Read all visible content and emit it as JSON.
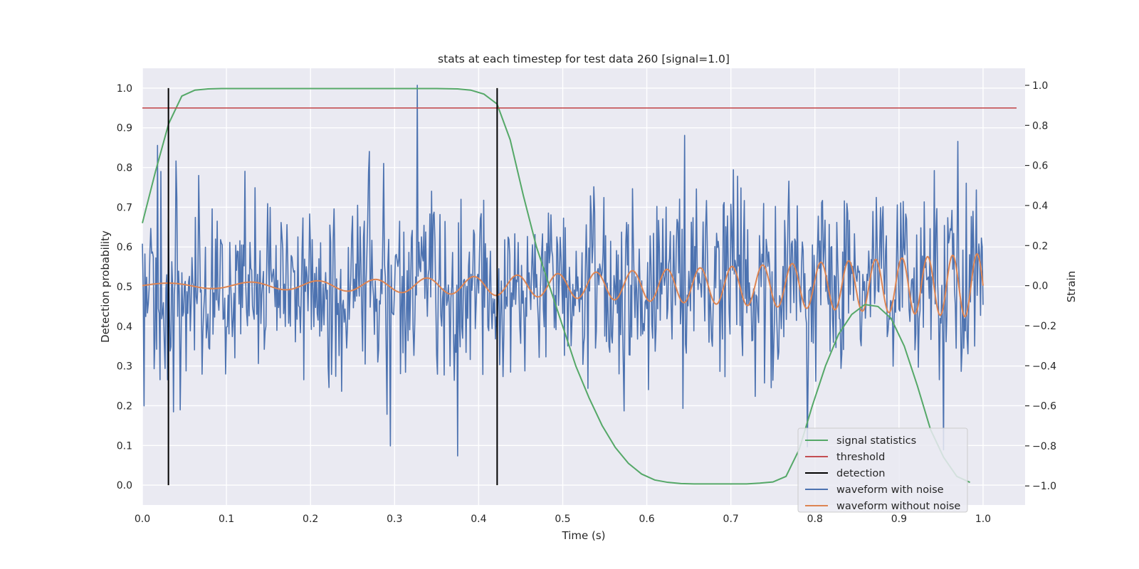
{
  "chart_data": {
    "type": "line",
    "title": "stats at each timestep for test data 260 [signal=1.0]",
    "xlabel": "Time (s)",
    "ylabel": "Detection probability",
    "y2label": "Strain",
    "xlim": [
      0.0,
      1.05
    ],
    "ylim": [
      -0.05,
      1.05
    ],
    "y2lim": [
      -1.095,
      1.085
    ],
    "x_ticks": [
      0.0,
      0.1,
      0.2,
      0.3,
      0.4,
      0.5,
      0.6,
      0.7,
      0.8,
      0.9,
      1.0
    ],
    "x_tick_labels": [
      "0.0",
      "0.1",
      "0.2",
      "0.3",
      "0.4",
      "0.5",
      "0.6",
      "0.7",
      "0.8",
      "0.9",
      "1.0"
    ],
    "y_ticks": [
      0.0,
      0.1,
      0.2,
      0.3,
      0.4,
      0.5,
      0.6,
      0.7,
      0.8,
      0.9,
      1.0
    ],
    "y_tick_labels": [
      "0.0",
      "0.1",
      "0.2",
      "0.3",
      "0.4",
      "0.5",
      "0.6",
      "0.7",
      "0.8",
      "0.9",
      "1.0"
    ],
    "y2_ticks": [
      -1.0,
      -0.8,
      -0.6,
      -0.4,
      -0.2,
      0.0,
      0.2,
      0.4,
      0.6,
      0.8,
      1.0
    ],
    "y2_tick_labels": [
      "−1.0",
      "−0.8",
      "−0.6",
      "−0.4",
      "−0.2",
      "0.0",
      "0.2",
      "0.4",
      "0.6",
      "0.8",
      "1.0"
    ],
    "grid": true,
    "legend_position": "lower-right",
    "signal_statistics": {
      "name": "signal statistics",
      "color": "#55a868",
      "x": [
        0.0,
        0.0156,
        0.0312,
        0.0469,
        0.0625,
        0.0781,
        0.0938,
        0.1094,
        0.2,
        0.3,
        0.35,
        0.375,
        0.3906,
        0.4063,
        0.4219,
        0.4375,
        0.4531,
        0.4688,
        0.4844,
        0.5,
        0.5156,
        0.5313,
        0.5469,
        0.5625,
        0.5781,
        0.5938,
        0.6094,
        0.625,
        0.6406,
        0.6563,
        0.6719,
        0.6875,
        0.7031,
        0.7188,
        0.7344,
        0.75,
        0.7656,
        0.7813,
        0.7969,
        0.8125,
        0.8281,
        0.8438,
        0.8594,
        0.875,
        0.8906,
        0.9063,
        0.9219,
        0.9375,
        0.9531,
        0.9688,
        0.9844
      ],
      "y": [
        0.66,
        0.79,
        0.91,
        0.98,
        0.995,
        0.998,
        0.999,
        0.999,
        0.999,
        0.999,
        0.999,
        0.998,
        0.995,
        0.985,
        0.96,
        0.87,
        0.73,
        0.6,
        0.5,
        0.4,
        0.3,
        0.22,
        0.15,
        0.095,
        0.055,
        0.028,
        0.013,
        0.007,
        0.004,
        0.003,
        0.003,
        0.003,
        0.003,
        0.003,
        0.005,
        0.008,
        0.022,
        0.09,
        0.2,
        0.3,
        0.38,
        0.43,
        0.455,
        0.45,
        0.42,
        0.35,
        0.25,
        0.14,
        0.07,
        0.022,
        0.007
      ]
    },
    "threshold": {
      "name": "threshold",
      "color": "#c44e52",
      "value": 0.95
    },
    "detections": {
      "name": "detection",
      "color": "#000000",
      "x": [
        0.031,
        0.422
      ]
    },
    "waveform_with_noise": {
      "name": "waveform with noise",
      "color": "#4c72b0",
      "x_start": 0.0,
      "x_end": 1.0,
      "noise_std": 0.22,
      "peaks": [
        {
          "x": 0.002,
          "y": -0.6
        },
        {
          "x": 0.018,
          "y": 0.7
        },
        {
          "x": 0.022,
          "y": 0.57
        },
        {
          "x": 0.03,
          "y": -0.47
        },
        {
          "x": 0.037,
          "y": -0.63
        },
        {
          "x": 0.045,
          "y": -0.62
        },
        {
          "x": 0.067,
          "y": 0.55
        },
        {
          "x": 0.27,
          "y": 0.67
        },
        {
          "x": 0.295,
          "y": -0.8
        },
        {
          "x": 0.327,
          "y": 1.0
        },
        {
          "x": 0.375,
          "y": -0.85
        },
        {
          "x": 0.645,
          "y": 0.75
        },
        {
          "x": 0.953,
          "y": -0.82
        },
        {
          "x": 0.97,
          "y": 0.72
        }
      ]
    },
    "waveform_without_noise": {
      "name": "waveform without noise",
      "color": "#dd8452",
      "x_start": 0.0,
      "x_end": 1.0,
      "amplitude_start": 0.012,
      "amplitude_end": 0.16,
      "frequency_start_hz": 8.0,
      "frequency_end_hz": 35.0
    }
  },
  "legend": [
    {
      "label": "signal statistics",
      "color": "#55a868"
    },
    {
      "label": "threshold",
      "color": "#c44e52"
    },
    {
      "label": "detection",
      "color": "#000000"
    },
    {
      "label": "waveform with noise",
      "color": "#4c72b0"
    },
    {
      "label": "waveform without noise",
      "color": "#dd8452"
    }
  ],
  "colors": {
    "plot_background": "#eaeaf2",
    "grid": "#ffffff",
    "text": "#262626"
  }
}
